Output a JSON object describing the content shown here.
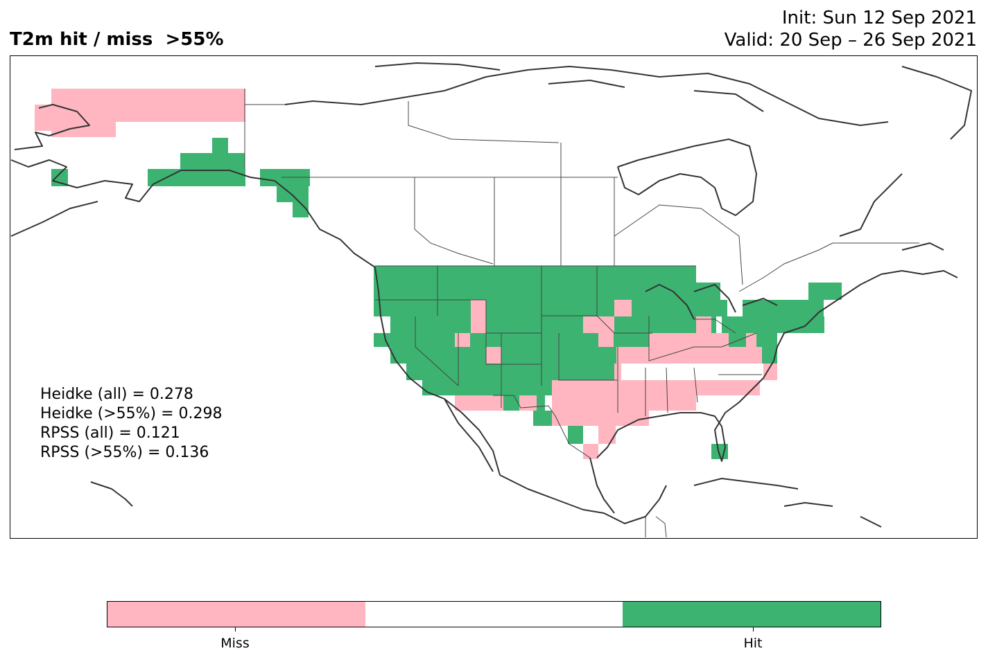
{
  "title": "T2m hit / miss  >55%",
  "init_line": "Init: Sun 12 Sep 2021",
  "valid_line": "Valid: 20 Sep – 26 Sep 2021",
  "stats": [
    "Heidke (all) = 0.278",
    "Heidke (>55%) = 0.298",
    "RPSS (all) = 0.121",
    "RPSS (>55%) = 0.136"
  ],
  "colors": {
    "miss": "#ffb6c1",
    "neutral": "#ffffff",
    "hit": "#3cb371",
    "coast": "#333333",
    "border": "#444444"
  },
  "colorbar": {
    "labels": [
      "Miss",
      "Hit"
    ]
  },
  "legend_categories": [
    "miss",
    "neutral",
    "hit"
  ]
}
